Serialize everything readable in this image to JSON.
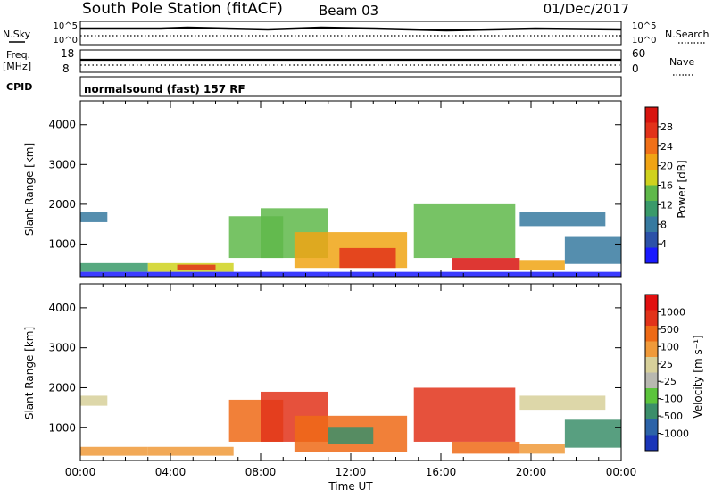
{
  "header": {
    "station": "South Pole Station (fitACF)",
    "beam": "Beam 03",
    "date": "01/Dec/2017"
  },
  "top_panels": {
    "nsky_label": "N.Sky",
    "nsky_ticks": [
      "10^5",
      "10^0"
    ],
    "nsearch_label": "N.Search",
    "nsearch_ticks": [
      "10^5",
      "10^0"
    ],
    "freq_label": "Freq.",
    "freq_unit": "[MHz]",
    "freq_ticks": [
      "18",
      "8"
    ],
    "nave_label": "Nave",
    "nave_ticks": [
      "60",
      "0"
    ],
    "cpid_label": "CPID",
    "cpid_value": "normalsound (fast) 157 RF"
  },
  "colors": {
    "power": [
      "#1a1aff",
      "#2c51a8",
      "#377aa0",
      "#3a9a6a",
      "#5fb84a",
      "#cfd21e",
      "#f0a414",
      "#f07018",
      "#e2321a",
      "#d8140f"
    ],
    "velocity": [
      "#1a35b8",
      "#2c63a8",
      "#3b8e6a",
      "#5cc43c",
      "#b8b8b0",
      "#d7d09a",
      "#f09a3a",
      "#ee6a16",
      "#e2331a",
      "#e21010"
    ]
  },
  "chart_data": [
    {
      "type": "heatmap",
      "name": "power",
      "ylabel": "Slant Range [km]",
      "yticks": [
        "4000",
        "3000",
        "2000",
        "1000"
      ],
      "ylim": [
        180,
        4600
      ],
      "xticks": [
        "00:00",
        "04:00",
        "08:00",
        "12:00",
        "16:00",
        "20:00",
        "00:00"
      ],
      "colorbar_label": "Power [dB]",
      "colorbar_ticks": [
        "28",
        "24",
        "20",
        "16",
        "12",
        "8",
        "4"
      ],
      "clim": [
        0,
        30
      ],
      "blocks": [
        {
          "t0": 0.0,
          "t1": 3.0,
          "r0": 300,
          "r1": 520,
          "v": 10
        },
        {
          "t0": 3.0,
          "t1": 6.8,
          "r0": 300,
          "r1": 520,
          "v": 17
        },
        {
          "t0": 4.3,
          "t1": 6.0,
          "r0": 350,
          "r1": 480,
          "v": 26
        },
        {
          "t0": 0.0,
          "t1": 1.2,
          "r0": 1550,
          "r1": 1800,
          "v": 6
        },
        {
          "t0": 6.6,
          "t1": 9.0,
          "r0": 650,
          "r1": 1700,
          "v": 14
        },
        {
          "t0": 8.0,
          "t1": 11.0,
          "r0": 650,
          "r1": 1900,
          "v": 13
        },
        {
          "t0": 9.5,
          "t1": 14.5,
          "r0": 400,
          "r1": 1300,
          "v": 19
        },
        {
          "t0": 11.5,
          "t1": 14.0,
          "r0": 400,
          "r1": 900,
          "v": 25
        },
        {
          "t0": 14.8,
          "t1": 19.3,
          "r0": 650,
          "r1": 2000,
          "v": 13
        },
        {
          "t0": 16.5,
          "t1": 19.5,
          "r0": 350,
          "r1": 650,
          "v": 27
        },
        {
          "t0": 19.5,
          "t1": 21.5,
          "r0": 350,
          "r1": 600,
          "v": 18
        },
        {
          "t0": 19.5,
          "t1": 23.3,
          "r0": 1450,
          "r1": 1800,
          "v": 6
        },
        {
          "t0": 21.5,
          "t1": 24.0,
          "r0": 500,
          "r1": 1200,
          "v": 7
        },
        {
          "t0": 0.0,
          "t1": 24.0,
          "r0": 180,
          "r1": 300,
          "v": 2
        }
      ]
    },
    {
      "type": "heatmap",
      "name": "velocity",
      "ylabel": "Slant Range [km]",
      "yticks": [
        "4000",
        "3000",
        "2000",
        "1000"
      ],
      "ylim": [
        180,
        4600
      ],
      "xticks": [
        "00:00",
        "04:00",
        "08:00",
        "12:00",
        "16:00",
        "20:00",
        "00:00"
      ],
      "xlabel": "Time UT",
      "colorbar_label": "Velocity [m s⁻¹]",
      "colorbar_ticks": [
        "1000",
        "500",
        "100",
        "25",
        "-25",
        "-100",
        "-500",
        "-1000"
      ],
      "blocks": [
        {
          "t0": 0.0,
          "t1": 3.0,
          "r0": 300,
          "r1": 520,
          "c": 6
        },
        {
          "t0": 3.0,
          "t1": 6.8,
          "r0": 300,
          "r1": 520,
          "c": 6
        },
        {
          "t0": 0.0,
          "t1": 1.2,
          "r0": 1550,
          "r1": 1800,
          "c": 5
        },
        {
          "t0": 6.6,
          "t1": 9.0,
          "r0": 650,
          "r1": 1700,
          "c": 7
        },
        {
          "t0": 8.0,
          "t1": 11.0,
          "r0": 650,
          "r1": 1900,
          "c": 8
        },
        {
          "t0": 9.5,
          "t1": 14.5,
          "r0": 400,
          "r1": 1300,
          "c": 7
        },
        {
          "t0": 11.0,
          "t1": 13.0,
          "r0": 600,
          "r1": 1000,
          "c": 2
        },
        {
          "t0": 14.8,
          "t1": 19.3,
          "r0": 650,
          "r1": 2000,
          "c": 8
        },
        {
          "t0": 16.5,
          "t1": 19.5,
          "r0": 350,
          "r1": 650,
          "c": 7
        },
        {
          "t0": 19.5,
          "t1": 21.5,
          "r0": 350,
          "r1": 600,
          "c": 6
        },
        {
          "t0": 19.5,
          "t1": 23.3,
          "r0": 1450,
          "r1": 1800,
          "c": 5
        },
        {
          "t0": 21.5,
          "t1": 24.0,
          "r0": 500,
          "r1": 1200,
          "c": 2
        }
      ]
    }
  ]
}
